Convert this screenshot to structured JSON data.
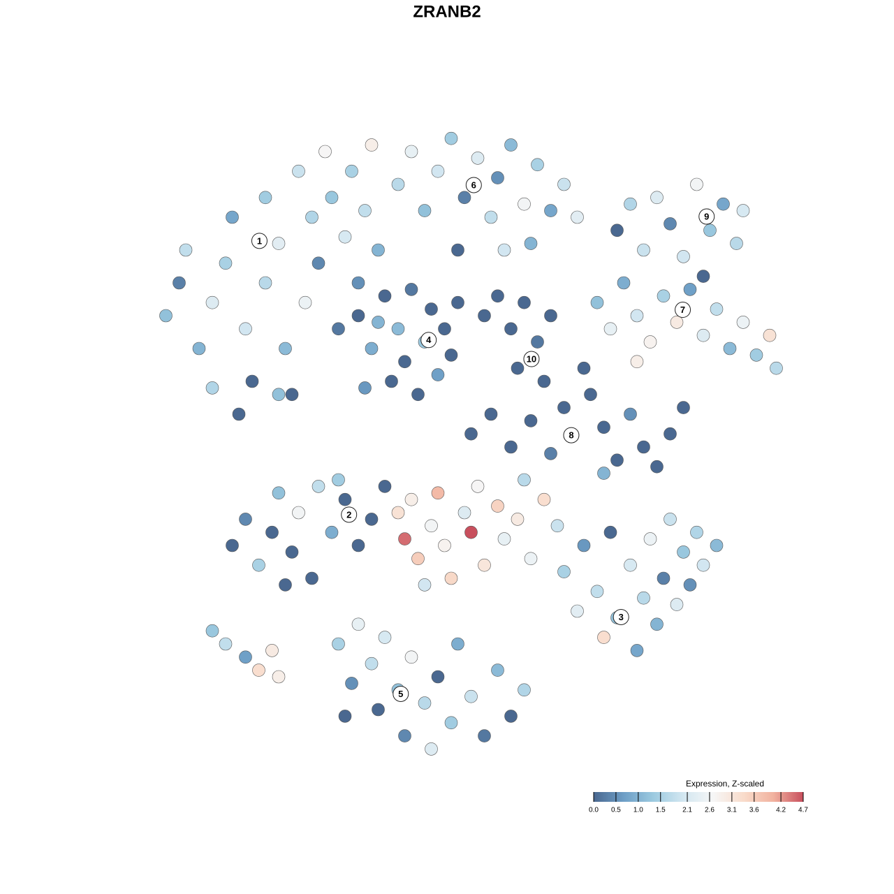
{
  "chart_data": {
    "type": "scatter",
    "title": "ZRANB2",
    "x": [
      -45,
      -43,
      -42,
      -40,
      -38,
      -36,
      -35,
      -33,
      -32,
      -30,
      -30,
      -28,
      -27,
      -26,
      -25,
      -24,
      -23,
      -22,
      -21,
      -20,
      -19,
      -18,
      -17,
      -16,
      -15,
      -14,
      -13,
      -34,
      -28,
      -38,
      -10,
      -8,
      -6,
      -4,
      -2,
      0,
      2,
      4,
      5,
      7,
      9,
      11,
      13,
      15,
      17,
      6,
      -1,
      10,
      -16,
      -14,
      -12,
      -11,
      -10,
      -9,
      -8,
      -7,
      -6,
      -5,
      -4,
      -3,
      -2,
      -15,
      -1,
      -13,
      3,
      5,
      7,
      9,
      11,
      13,
      8,
      12,
      23,
      25,
      27,
      29,
      31,
      33,
      35,
      37,
      39,
      41,
      42,
      36,
      20,
      22,
      24,
      26,
      28,
      30,
      32,
      34,
      36,
      38,
      40,
      42,
      44,
      46,
      47,
      26,
      1,
      4,
      7,
      10,
      13,
      15,
      18,
      19,
      21,
      23,
      25,
      27,
      29,
      31,
      33,
      21,
      -35,
      -33,
      -31,
      -29,
      -28,
      -26,
      -25,
      -23,
      -22,
      -20,
      -18,
      -16,
      -14,
      -12,
      -27,
      -19,
      -10,
      -9,
      -8,
      -7,
      -5,
      -4,
      -3,
      -2,
      0,
      1,
      2,
      3,
      5,
      6,
      8,
      9,
      10,
      12,
      14,
      -6,
      15,
      17,
      18,
      20,
      21,
      22,
      23,
      25,
      26,
      27,
      28,
      29,
      30,
      31,
      32,
      33,
      34,
      35,
      36,
      38,
      -19,
      -17,
      -16,
      -14,
      -13,
      -12,
      -10,
      -9,
      -8,
      -6,
      -5,
      -4,
      -2,
      -1,
      1,
      3,
      5,
      7,
      9,
      -18,
      -38,
      -36,
      -33,
      -31,
      -29,
      -28
    ],
    "y": [
      20,
      25,
      30,
      15,
      22,
      28,
      35,
      18,
      10,
      25,
      38,
      31,
      15,
      8,
      42,
      22,
      35,
      28,
      45,
      38,
      18,
      32,
      42,
      25,
      36,
      46,
      30,
      5,
      8,
      9,
      40,
      45,
      36,
      42,
      47,
      38,
      44,
      35,
      41,
      46,
      37,
      43,
      36,
      40,
      35,
      30,
      30,
      31,
      20,
      15,
      23,
      10,
      18,
      13,
      24,
      8,
      16,
      21,
      11,
      18,
      14,
      9,
      22,
      19,
      20,
      23,
      18,
      22,
      16,
      20,
      12,
      10,
      33,
      37,
      30,
      38,
      34,
      29,
      40,
      33,
      37,
      31,
      36,
      26,
      22,
      18,
      25,
      20,
      16,
      23,
      19,
      24,
      17,
      21,
      15,
      19,
      14,
      17,
      12,
      13,
      2,
      5,
      0,
      4,
      -1,
      6,
      12,
      8,
      3,
      -2,
      5,
      0,
      -3,
      2,
      6,
      -4,
      -15,
      -11,
      -18,
      -13,
      -7,
      -16,
      -10,
      -20,
      -6,
      -13,
      -8,
      -15,
      -11,
      -6,
      -21,
      -5,
      -10,
      -14,
      -8,
      -17,
      -12,
      -7,
      -15,
      -20,
      -10,
      -13,
      -6,
      -18,
      -9,
      -14,
      -11,
      -5,
      -17,
      -8,
      -12,
      -21,
      -19,
      -25,
      -15,
      -22,
      -29,
      -13,
      -26,
      -18,
      -31,
      -23,
      -14,
      -27,
      -20,
      -11,
      -24,
      -16,
      -21,
      -13,
      -18,
      -15,
      -30,
      -36,
      -27,
      -33,
      -40,
      -29,
      -37,
      -44,
      -32,
      -39,
      -46,
      -35,
      -42,
      -30,
      -38,
      -44,
      -34,
      -41,
      -37,
      -41,
      -28,
      -30,
      -32,
      -34,
      -31,
      -35
    ],
    "values": [
      1.2,
      0.3,
      1.8,
      1.0,
      2.2,
      1.5,
      0.8,
      2.0,
      0,
      1.7,
      1.4,
      2.3,
      1.1,
      0,
      1.9,
      2.5,
      1.6,
      0.4,
      2.7,
      1.3,
      0.2,
      2.1,
      1.5,
      0.5,
      1.8,
      2.9,
      1.0,
      0,
      1.2,
      1.6,
      1.7,
      2.4,
      1.2,
      2.0,
      1.4,
      0.3,
      2.2,
      1.8,
      0.5,
      1.1,
      2.6,
      1.5,
      0.8,
      1.9,
      2.3,
      2.0,
      0,
      1.0,
      0,
      0.9,
      0,
      0,
      1.1,
      0,
      0.2,
      0,
      1.3,
      0,
      0.7,
      0,
      0,
      0.6,
      0,
      1.0,
      0,
      0,
      0,
      0,
      0.2,
      0,
      0,
      0,
      0,
      1.6,
      1.9,
      2.2,
      0.4,
      2.0,
      2.6,
      1.3,
      0.8,
      1.7,
      2.1,
      0,
      1.2,
      2.4,
      0.9,
      2.0,
      2.8,
      1.5,
      3.0,
      0.7,
      2.2,
      1.8,
      1.1,
      2.5,
      1.4,
      3.2,
      1.7,
      2.9,
      0,
      0,
      0,
      0,
      0.3,
      0,
      0,
      0,
      0,
      0,
      0.5,
      0,
      0,
      0,
      0,
      1.0,
      0,
      0.4,
      1.5,
      0,
      1.2,
      0,
      2.6,
      0,
      1.8,
      0.9,
      0,
      0,
      0,
      0,
      0,
      1.4,
      3.2,
      4.5,
      2.9,
      3.6,
      2.6,
      3.9,
      2.8,
      3.4,
      2.2,
      4.7,
      2.7,
      3.1,
      3.5,
      2.4,
      3.0,
      1.7,
      2.5,
      3.3,
      1.9,
      2.0,
      1.5,
      2.3,
      0.6,
      1.8,
      3.3,
      0,
      1.2,
      2.1,
      0.8,
      1.7,
      2.5,
      1.0,
      0.3,
      1.9,
      2.2,
      1.3,
      0.5,
      1.6,
      2.0,
      1.1,
      1.5,
      0.5,
      2.4,
      1.8,
      0,
      2.1,
      1.2,
      0.4,
      2.6,
      1.7,
      2.2,
      0,
      1.4,
      0.9,
      1.9,
      0.2,
      1.1,
      0,
      1.6,
      0,
      1.3,
      1.8,
      0.7,
      3.3,
      3.0,
      2.9
    ],
    "xlim": [
      -50,
      50
    ],
    "ylim": [
      -50,
      50
    ],
    "annotations": [
      {
        "label": "1",
        "x": -30.9,
        "y": 31.4
      },
      {
        "label": "2",
        "x": -17.4,
        "y": -10.3
      },
      {
        "label": "3",
        "x": 23.6,
        "y": -25.9
      },
      {
        "label": "4",
        "x": -5.4,
        "y": 16.3
      },
      {
        "label": "5",
        "x": -9.6,
        "y": -37.6
      },
      {
        "label": "6",
        "x": 1.4,
        "y": 39.9
      },
      {
        "label": "7",
        "x": 32.9,
        "y": 20.9
      },
      {
        "label": "8",
        "x": 16.1,
        "y": 1.8
      },
      {
        "label": "9",
        "x": 36.5,
        "y": 35.1
      },
      {
        "label": "10",
        "x": 10.1,
        "y": 13.4
      }
    ],
    "colorbar": {
      "title": "Expression, Z-scaled",
      "ticks": [
        {
          "value": 0,
          "label": "0.0"
        },
        0.5,
        {
          "value": 1,
          "label": "1.0"
        },
        1.5,
        2.1,
        2.6,
        3.1,
        3.6,
        4.2,
        4.7
      ],
      "colors": [
        "#4a6890",
        "#6d9ec6",
        "#9ccae0",
        "#d3e7f1",
        "#f6f6f6",
        "#f9dccb",
        "#f1b29f",
        "#c84f5d"
      ]
    }
  }
}
